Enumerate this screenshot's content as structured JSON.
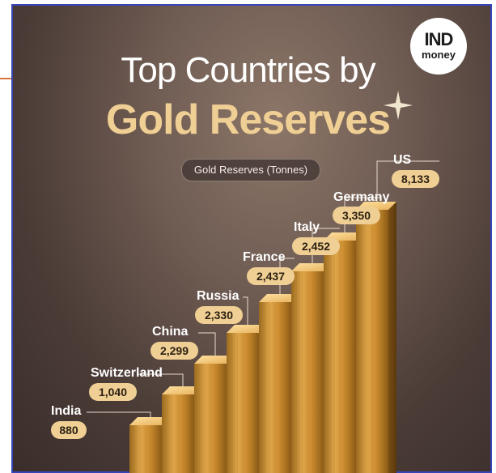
{
  "brand": {
    "logo_top": "IND",
    "logo_bottom": "money"
  },
  "title_line1": "Top Countries by",
  "title_line2": "Gold Reserves",
  "subtitle": "Gold Reserves (Tonnes)",
  "colors": {
    "title_accent": "#f0cf94",
    "label_pill": "#f0cf94",
    "background": "#5a4842",
    "bar_gold": "#d99c3a"
  },
  "chart_data": {
    "type": "bar",
    "title": "Gold Reserves",
    "ylabel": "Gold Reserves (Tonnes)",
    "categories": [
      "India",
      "Switzerland",
      "China",
      "Russia",
      "France",
      "Italy",
      "Germany",
      "US"
    ],
    "values": [
      880,
      1040,
      2299,
      2330,
      2437,
      2452,
      3350,
      8133
    ],
    "value_labels": [
      "880",
      "1,040",
      "2,299",
      "2,330",
      "2,437",
      "2,452",
      "3,350",
      "8,133"
    ]
  }
}
